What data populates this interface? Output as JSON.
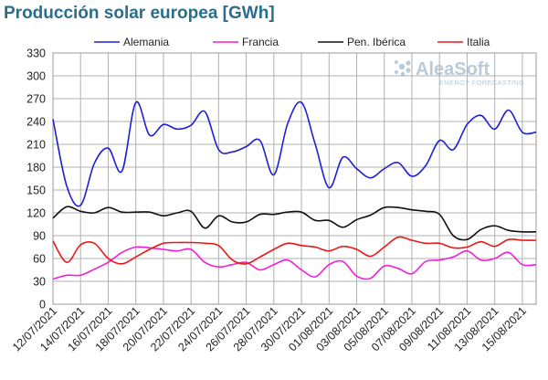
{
  "chart_data": {
    "type": "line",
    "title": "Producción solar europea [GWh]",
    "xlabel": "",
    "ylabel": "",
    "ylim": [
      0,
      330
    ],
    "yticks": [
      0,
      30,
      60,
      90,
      120,
      150,
      180,
      210,
      240,
      270,
      300,
      330
    ],
    "x_tick_labels": [
      "12/07/2021",
      "14/07/2021",
      "16/07/2021",
      "18/07/2021",
      "20/07/2021",
      "22/07/2021",
      "24/07/2021",
      "26/07/2021",
      "28/07/2021",
      "30/07/2021",
      "01/08/2021",
      "03/08/2021",
      "05/08/2021",
      "07/08/2021",
      "09/08/2021",
      "11/08/2021",
      "13/08/2021",
      "15/08/2021"
    ],
    "grid": true,
    "legend_position": "top",
    "dates": [
      "12/07/2021",
      "13/07/2021",
      "14/07/2021",
      "15/07/2021",
      "16/07/2021",
      "17/07/2021",
      "18/07/2021",
      "19/07/2021",
      "20/07/2021",
      "21/07/2021",
      "22/07/2021",
      "23/07/2021",
      "24/07/2021",
      "25/07/2021",
      "26/07/2021",
      "27/07/2021",
      "28/07/2021",
      "29/07/2021",
      "30/07/2021",
      "31/07/2021",
      "01/08/2021",
      "02/08/2021",
      "03/08/2021",
      "04/08/2021",
      "05/08/2021",
      "06/08/2021",
      "07/08/2021",
      "08/08/2021",
      "09/08/2021",
      "10/08/2021",
      "11/08/2021",
      "12/08/2021",
      "13/08/2021",
      "14/08/2021",
      "15/08/2021",
      "16/08/2021"
    ],
    "series": [
      {
        "name": "Alemania",
        "color": "#1f1fd6",
        "values": [
          243,
          155,
          130,
          185,
          205,
          175,
          265,
          222,
          236,
          230,
          235,
          253,
          203,
          200,
          207,
          215,
          170,
          237,
          265,
          210,
          153,
          193,
          178,
          166,
          178,
          186,
          168,
          182,
          215,
          203,
          236,
          248,
          230,
          255,
          226,
          226
        ]
      },
      {
        "name": "Francia",
        "color": "#f01fd8",
        "values": [
          33,
          38,
          38,
          46,
          55,
          68,
          75,
          74,
          72,
          70,
          72,
          55,
          49,
          52,
          55,
          45,
          52,
          58,
          45,
          36,
          52,
          56,
          37,
          34,
          50,
          47,
          40,
          56,
          58,
          62,
          70,
          58,
          60,
          68,
          52,
          52
        ]
      },
      {
        "name": "Pen. Ibérica",
        "color": "#111111",
        "values": [
          113,
          128,
          122,
          120,
          127,
          121,
          121,
          121,
          116,
          120,
          122,
          100,
          116,
          108,
          108,
          118,
          118,
          121,
          121,
          110,
          110,
          101,
          111,
          117,
          127,
          127,
          124,
          122,
          118,
          90,
          85,
          98,
          103,
          97,
          95,
          95
        ]
      },
      {
        "name": "Italia",
        "color": "#e81818",
        "values": [
          83,
          55,
          78,
          80,
          60,
          53,
          62,
          72,
          80,
          81,
          81,
          80,
          77,
          58,
          53,
          62,
          72,
          80,
          77,
          75,
          70,
          76,
          72,
          63,
          75,
          88,
          84,
          80,
          80,
          74,
          75,
          82,
          76,
          85,
          84,
          84
        ]
      }
    ]
  },
  "watermark": {
    "brand": "AleaSoft",
    "tagline": "ENERGY FORECASTING"
  }
}
